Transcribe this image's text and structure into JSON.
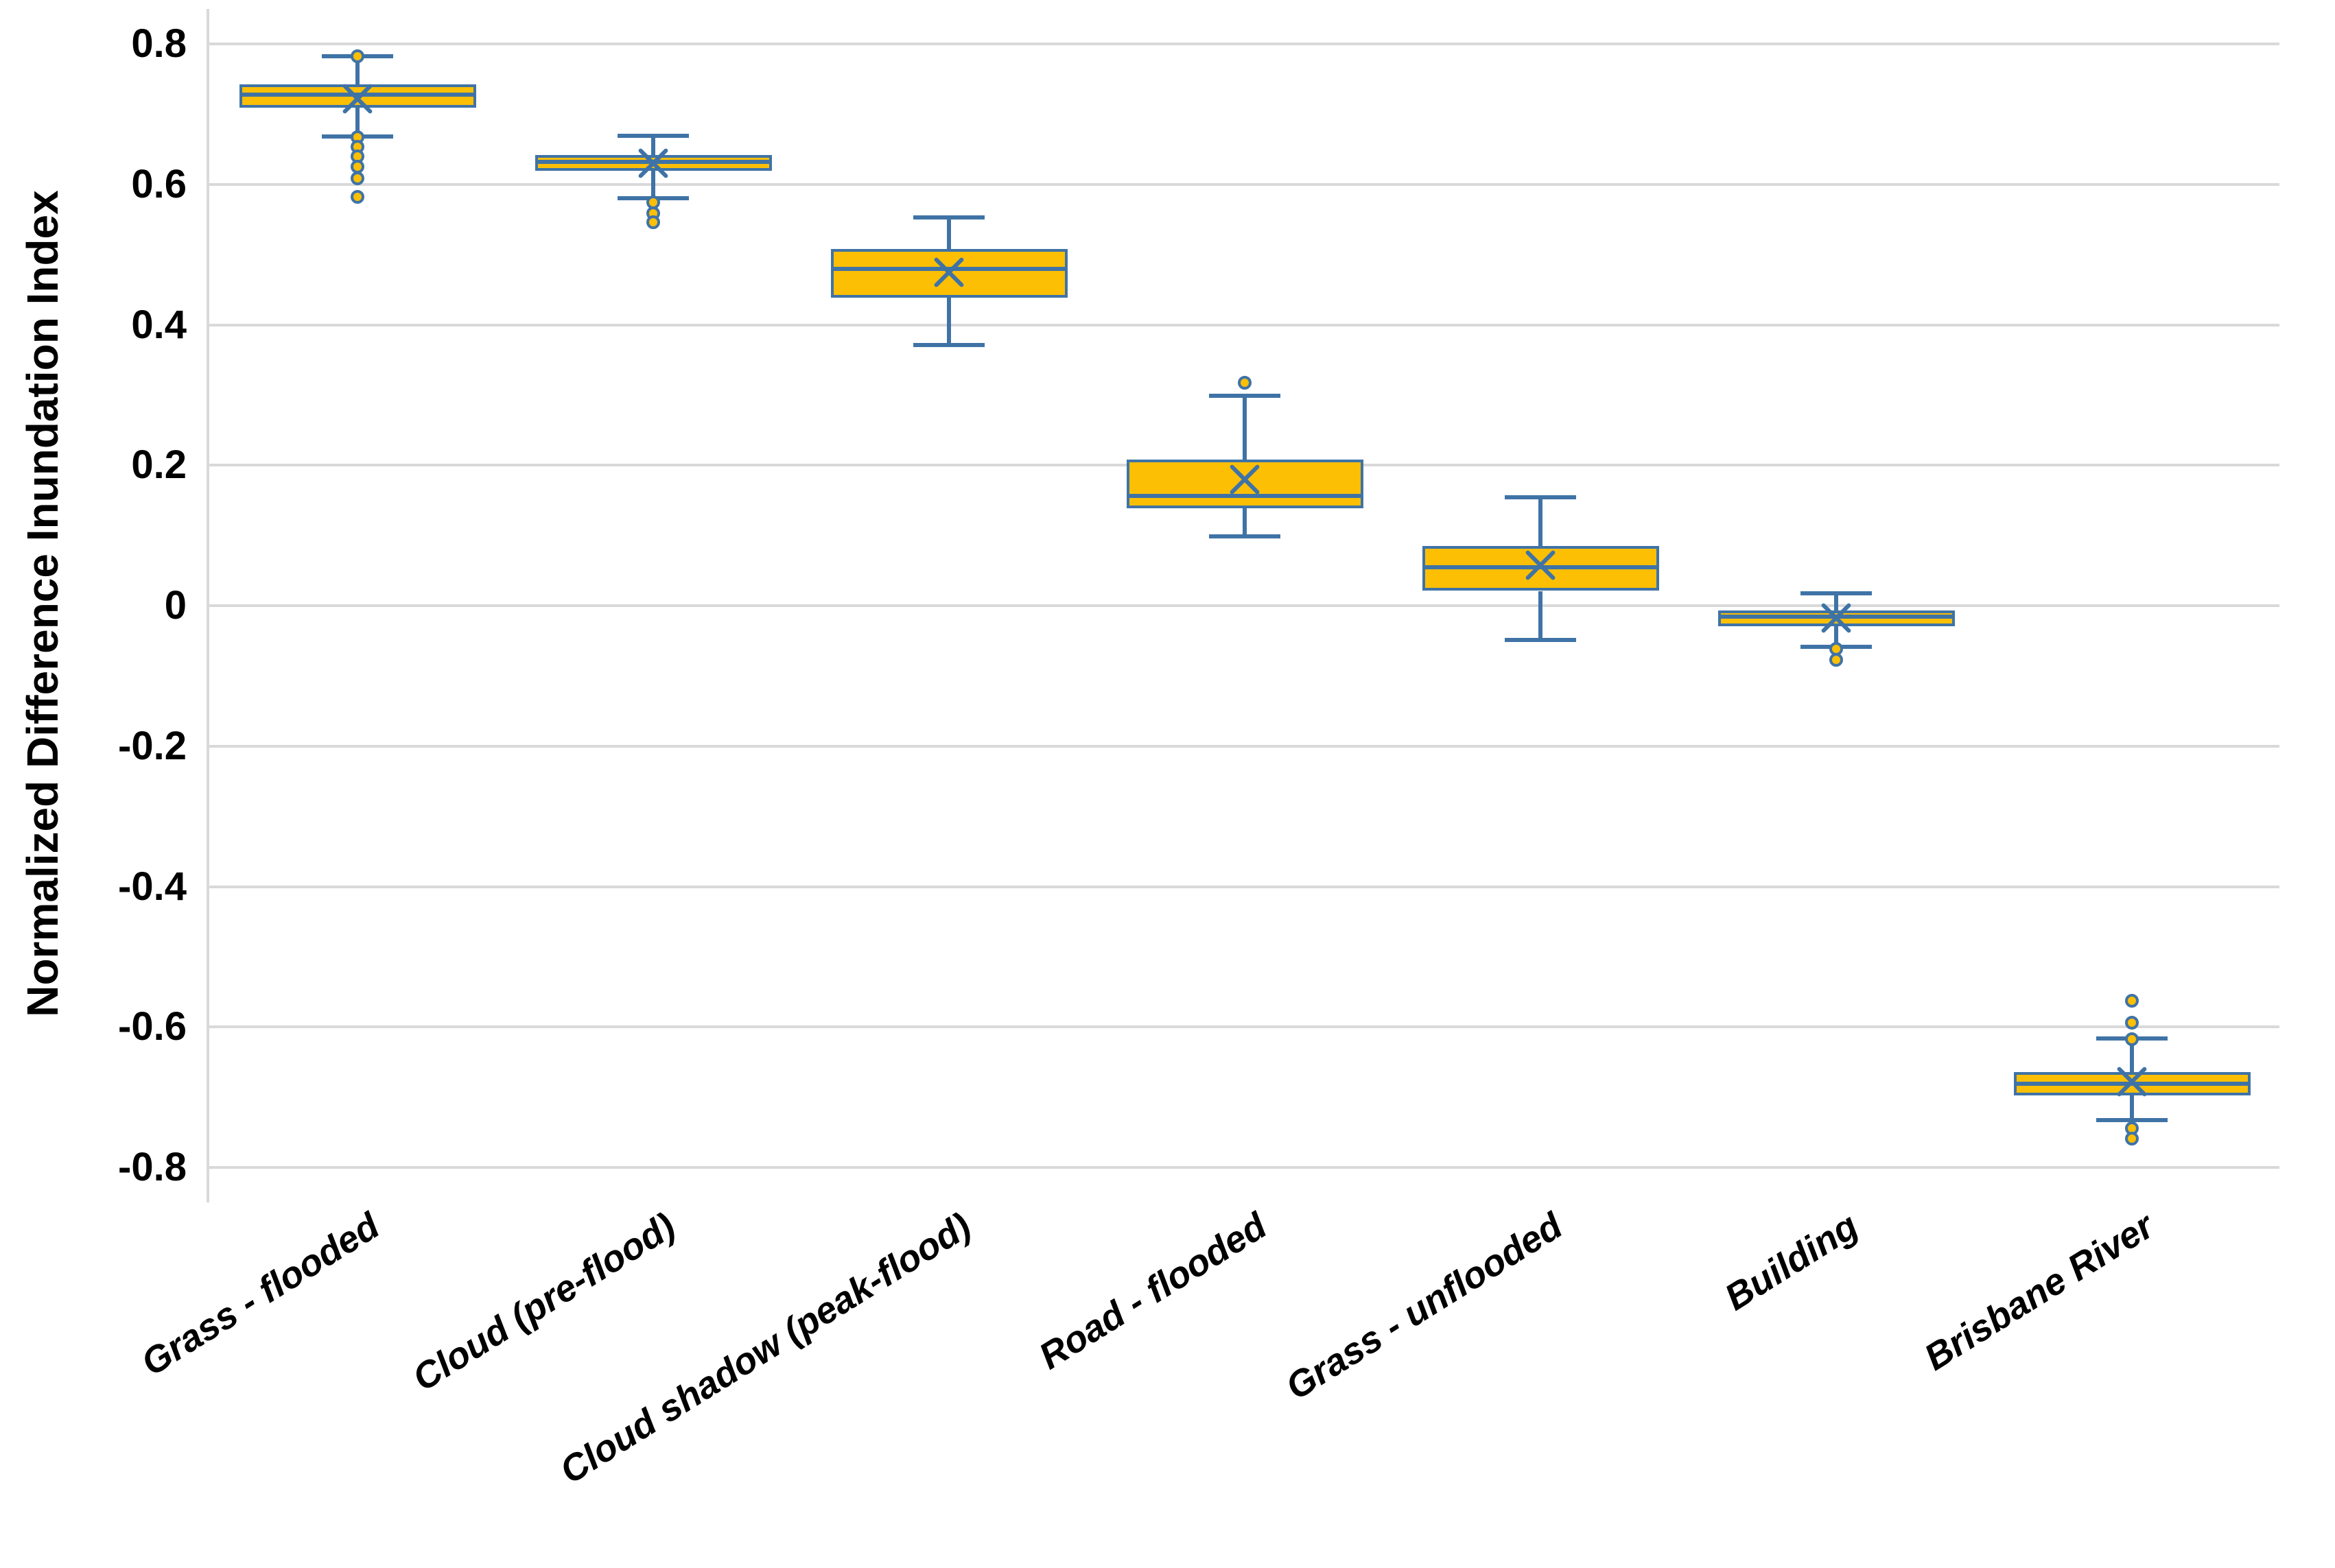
{
  "chart_data": {
    "type": "boxplot",
    "title": "",
    "ylabel": "Normalized Difference Inundation Index",
    "xlabel": "",
    "ylim": [
      -0.85,
      0.85
    ],
    "grid": true,
    "legend": false,
    "ytick_labels": [
      "0.8",
      "0.6",
      "0.4",
      "0.2",
      "0",
      "-0.2",
      "-0.4",
      "-0.6",
      "-0.8"
    ],
    "ytick_values": [
      0.8,
      0.6,
      0.4,
      0.2,
      0,
      -0.2,
      -0.4,
      -0.6,
      -0.8
    ],
    "categories": [
      "Grass - flooded",
      "Cloud (pre-flood)",
      "Cloud shadow (peak-flood)",
      "Road - flooded",
      "Grass - unflooded",
      "Building",
      "Brisbane River"
    ],
    "series": [
      {
        "name": "Grass - flooded",
        "whisker_low": 0.668,
        "q1": 0.709,
        "median": 0.728,
        "q3": 0.742,
        "mean": 0.722,
        "whisker_high": 0.782,
        "outliers": [
          0.782,
          0.667,
          0.653,
          0.64,
          0.625,
          0.609,
          0.582
        ]
      },
      {
        "name": "Cloud (pre-flood)",
        "whisker_low": 0.58,
        "q1": 0.619,
        "median": 0.632,
        "q3": 0.642,
        "mean": 0.63,
        "whisker_high": 0.669,
        "outliers": [
          0.574,
          0.559,
          0.546
        ]
      },
      {
        "name": "Cloud shadow (peak-flood)",
        "whisker_low": 0.371,
        "q1": 0.439,
        "median": 0.48,
        "q3": 0.508,
        "mean": 0.475,
        "whisker_high": 0.553,
        "outliers": []
      },
      {
        "name": "Road - flooded",
        "whisker_low": 0.099,
        "q1": 0.139,
        "median": 0.156,
        "q3": 0.208,
        "mean": 0.18,
        "whisker_high": 0.299,
        "outliers": [
          0.317
        ]
      },
      {
        "name": "Grass - unflooded",
        "whisker_low": -0.049,
        "q1": 0.021,
        "median": 0.055,
        "q3": 0.085,
        "mean": 0.058,
        "whisker_high": 0.154,
        "outliers": []
      },
      {
        "name": "Building",
        "whisker_low": -0.059,
        "q1": -0.029,
        "median": -0.016,
        "q3": -0.007,
        "mean": -0.018,
        "whisker_high": 0.018,
        "outliers": [
          -0.062,
          -0.077
        ]
      },
      {
        "name": "Brisbane River",
        "whisker_low": -0.733,
        "q1": -0.697,
        "median": -0.681,
        "q3": -0.664,
        "mean": -0.678,
        "whisker_high": -0.616,
        "outliers": [
          -0.563,
          -0.594,
          -0.617,
          -0.744,
          -0.759
        ]
      }
    ]
  },
  "colors": {
    "box_fill": "#FCBF04",
    "box_line": "#3F73A6",
    "gridline": "#D9D9D9",
    "axis_line": "#D9D9D9",
    "text": "#000000",
    "background": "#FFFFFF"
  }
}
